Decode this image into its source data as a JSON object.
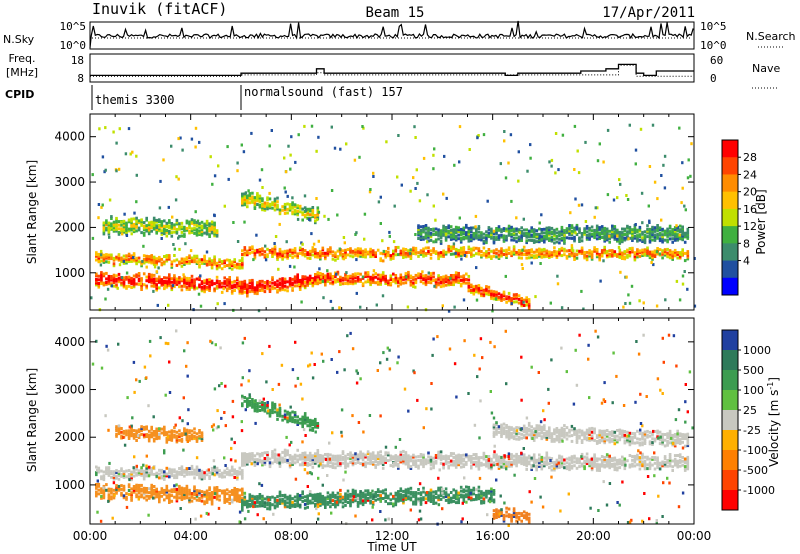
{
  "header": {
    "station": "Inuvik (fitACF)",
    "beam": "Beam 15",
    "date": "17/Apr/2011"
  },
  "top_panels": {
    "nsky_label": "N.Sky",
    "nsky_ticks": [
      "10^5",
      "10^0"
    ],
    "nsearch_label": "N.Search",
    "nsearch_ticks": [
      "10^5",
      "10^0"
    ],
    "freq_label_1": "Freq.",
    "freq_label_2": "[MHz]",
    "freq_ticks": [
      "18",
      "8"
    ],
    "nave_label": "Nave",
    "nave_ticks": [
      "60",
      "0"
    ],
    "cpid_label": "CPID",
    "cpid_segments": [
      {
        "label": "themis 3300",
        "start_hour": 0
      },
      {
        "label": "normalsound (fast) 157",
        "start_hour": 6
      }
    ],
    "freq_profile": [
      [
        0,
        11
      ],
      [
        6,
        11
      ],
      [
        6,
        12
      ],
      [
        9,
        12
      ],
      [
        9,
        14
      ],
      [
        9.3,
        14
      ],
      [
        9.3,
        12
      ],
      [
        16.5,
        12
      ],
      [
        16.5,
        11
      ],
      [
        17,
        11
      ],
      [
        17,
        12
      ],
      [
        19.5,
        12
      ],
      [
        19.5,
        13
      ],
      [
        20.5,
        13
      ],
      [
        20.5,
        14
      ],
      [
        21,
        14
      ],
      [
        21,
        16
      ],
      [
        21.7,
        16
      ],
      [
        21.7,
        12
      ],
      [
        22,
        12
      ],
      [
        22,
        11
      ],
      [
        22.5,
        11
      ],
      [
        22.5,
        13
      ],
      [
        24,
        13
      ]
    ],
    "nave_profile": [
      [
        0,
        10
      ],
      [
        6,
        10
      ],
      [
        6,
        14
      ],
      [
        9,
        14
      ],
      [
        9,
        20
      ],
      [
        9.3,
        20
      ],
      [
        9.3,
        14
      ],
      [
        21,
        14
      ],
      [
        21,
        40
      ],
      [
        21.7,
        40
      ],
      [
        21.7,
        10
      ],
      [
        24,
        10
      ]
    ]
  },
  "chart_data": [
    {
      "type": "heatmap",
      "title": "Power",
      "xlabel": "Time UT",
      "ylabel": "Slant Range [km]",
      "xlim": [
        0,
        24
      ],
      "ylim": [
        180,
        4500
      ],
      "x_tick_labels": [
        "00:00",
        "04:00",
        "08:00",
        "12:00",
        "16:00",
        "20:00",
        "00:00"
      ],
      "y_ticks": [
        1000,
        2000,
        3000,
        4000
      ],
      "colorbar_label": "Power [dB]",
      "colorbar_ticks": [
        "28",
        "24",
        "20",
        "16",
        "12",
        "8",
        "4"
      ],
      "colorbar_colors": [
        "#ff0000",
        "#ff4400",
        "#ff8c00",
        "#ffc000",
        "#c0e000",
        "#40b040",
        "#3c8c6c",
        "#2050a0",
        "#0000ff"
      ],
      "bands": [
        {
          "x": [
            0.2,
            6.0
          ],
          "r": [
            900,
            750
          ],
          "w": 260,
          "level": 1.0
        },
        {
          "x": [
            6.0,
            9.0
          ],
          "r": [
            700,
            900
          ],
          "w": 280,
          "level": 1.0
        },
        {
          "x": [
            9.0,
            15.0
          ],
          "r": [
            920,
            880
          ],
          "w": 220,
          "level": 0.9
        },
        {
          "x": [
            15.0,
            17.5
          ],
          "r": [
            700,
            350
          ],
          "w": 180,
          "level": 0.9
        },
        {
          "x": [
            0.2,
            6.0
          ],
          "r": [
            1350,
            1250
          ],
          "w": 180,
          "level": 0.75
        },
        {
          "x": [
            6.0,
            12.0
          ],
          "r": [
            1500,
            1450
          ],
          "w": 200,
          "level": 0.8
        },
        {
          "x": [
            12.0,
            23.8
          ],
          "r": [
            1500,
            1450
          ],
          "w": 180,
          "level": 0.75
        },
        {
          "x": [
            0.5,
            5.0
          ],
          "r": [
            2100,
            2000
          ],
          "w": 300,
          "level": 0.45
        },
        {
          "x": [
            6.0,
            9.0
          ],
          "r": [
            2700,
            2300
          ],
          "w": 250,
          "level": 0.5
        },
        {
          "x": [
            13.0,
            23.8
          ],
          "r": [
            1900,
            1900
          ],
          "w": 320,
          "level": 0.25
        }
      ]
    },
    {
      "type": "heatmap",
      "title": "Velocity",
      "xlabel": "Time UT",
      "ylabel": "Slant Range [km]",
      "xlim": [
        0,
        24
      ],
      "ylim": [
        180,
        4500
      ],
      "x_tick_labels": [
        "00:00",
        "04:00",
        "08:00",
        "12:00",
        "16:00",
        "20:00",
        "00:00"
      ],
      "y_ticks": [
        1000,
        2000,
        3000,
        4000
      ],
      "colorbar_label": "Velocity [m s^-1]",
      "colorbar_ticks": [
        "1000",
        "500",
        "100",
        "25",
        "-25",
        "-100",
        "-500",
        "-1000"
      ],
      "colorbar_colors": [
        "#2040a0",
        "#2e7a5a",
        "#3c9c50",
        "#60c040",
        "#c8c8c0",
        "#ffb000",
        "#ff8000",
        "#ff4400",
        "#ff0000"
      ],
      "bands": [
        {
          "x": [
            0.2,
            6.0
          ],
          "r": [
            900,
            800
          ],
          "w": 260,
          "color": "#f59020"
        },
        {
          "x": [
            6.0,
            16.0
          ],
          "r": [
            700,
            850
          ],
          "w": 280,
          "color": "#3a9060"
        },
        {
          "x": [
            16.0,
            17.5
          ],
          "r": [
            450,
            380
          ],
          "w": 200,
          "color": "#f08020"
        },
        {
          "x": [
            0.2,
            6.0
          ],
          "r": [
            1300,
            1300
          ],
          "w": 200,
          "color": "#c8c8c0"
        },
        {
          "x": [
            6.0,
            23.8
          ],
          "r": [
            1600,
            1500
          ],
          "w": 260,
          "color": "#c8c8c0"
        },
        {
          "x": [
            1.0,
            4.5
          ],
          "r": [
            2150,
            2050
          ],
          "w": 220,
          "color": "#f59020"
        },
        {
          "x": [
            6.0,
            9.0
          ],
          "r": [
            2800,
            2300
          ],
          "w": 220,
          "color": "#3c9c50"
        },
        {
          "x": [
            16.0,
            23.8
          ],
          "r": [
            2200,
            2000
          ],
          "w": 280,
          "color": "#c8c8c0"
        }
      ]
    }
  ]
}
